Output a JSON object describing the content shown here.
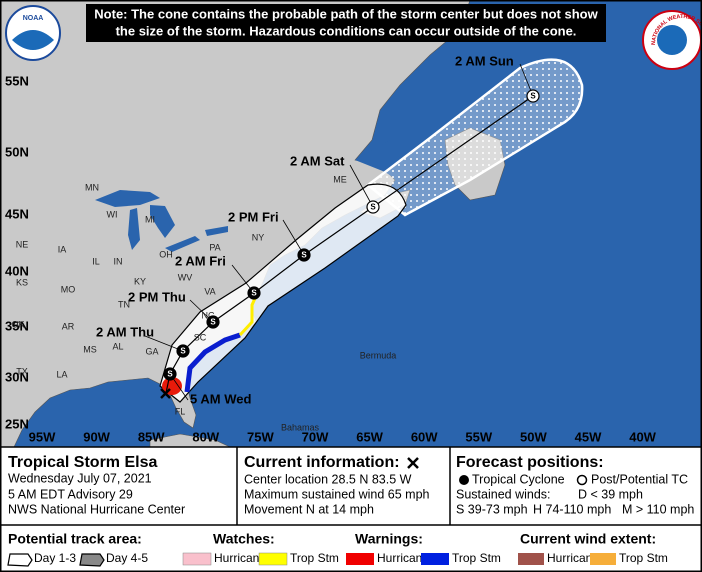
{
  "note_lines": [
    "Note: The cone contains the probable path of the storm center but does not show",
    "the size of the storm. Hazardous conditions can occur outside of the cone."
  ],
  "logos": {
    "noaa": "NOAA",
    "nws": "NATIONAL WEATHER SERVICE"
  },
  "lat_labels": [
    "55N",
    "50N",
    "45N",
    "40N",
    "35N",
    "30N",
    "25N"
  ],
  "lon_labels": [
    "95W",
    "90W",
    "85W",
    "80W",
    "75W",
    "70W",
    "65W",
    "60W",
    "55W",
    "50W",
    "45W",
    "40W"
  ],
  "state_labels": [
    "MN",
    "WI",
    "MI",
    "NE",
    "IA",
    "IL",
    "IN",
    "OH",
    "PA",
    "NY",
    "KS",
    "MO",
    "KY",
    "WV",
    "VA",
    "OK",
    "TN",
    "NC",
    "AR",
    "MS",
    "AL",
    "GA",
    "SC",
    "TX",
    "LA",
    "FL",
    "ME"
  ],
  "place_labels": [
    "Bermuda",
    "Bahamas"
  ],
  "track_points": [
    {
      "time": "2 AM Sun",
      "symbol": "S"
    },
    {
      "time": "2 AM Sat",
      "symbol": "S"
    },
    {
      "time": "2 PM Fri",
      "symbol": "S"
    },
    {
      "time": "2 AM Fri",
      "symbol": "S"
    },
    {
      "time": "2 PM Thu",
      "symbol": "S"
    },
    {
      "time": "2 AM Thu",
      "symbol": "S"
    },
    {
      "time": "5 AM Wed",
      "symbol": "S"
    }
  ],
  "storm": {
    "title": "Tropical Storm Elsa",
    "date": "Wednesday July 07, 2021",
    "advisory": "5 AM EDT Advisory 29",
    "center": "NWS National Hurricane Center"
  },
  "current": {
    "title": "Current information:",
    "lines": [
      "Center location 28.5 N 83.5 W",
      "Maximum sustained wind 65 mph",
      "Movement N at 14 mph"
    ]
  },
  "forecast": {
    "title": "Forecast positions:",
    "cyclone": "Tropical Cyclone",
    "post": "Post/Potential TC",
    "winds": "Sustained winds:",
    "d": "D < 39 mph",
    "s": "S 39-73 mph",
    "h": "H 74-110 mph",
    "m": "M > 110 mph"
  },
  "legend": {
    "track_title": "Potential track area:",
    "day13": "Day 1-3",
    "day45": "Day 4-5",
    "watches_title": "Watches:",
    "watch_hurricane": "Hurricane",
    "watch_trop": "Trop Stm",
    "warnings_title": "Warnings:",
    "warn_hurricane": "Hurricane",
    "warn_trop": "Trop Stm",
    "wind_title": "Current wind extent:",
    "wind_hurricane": "Hurricane",
    "wind_trop": "Trop Stm"
  }
}
